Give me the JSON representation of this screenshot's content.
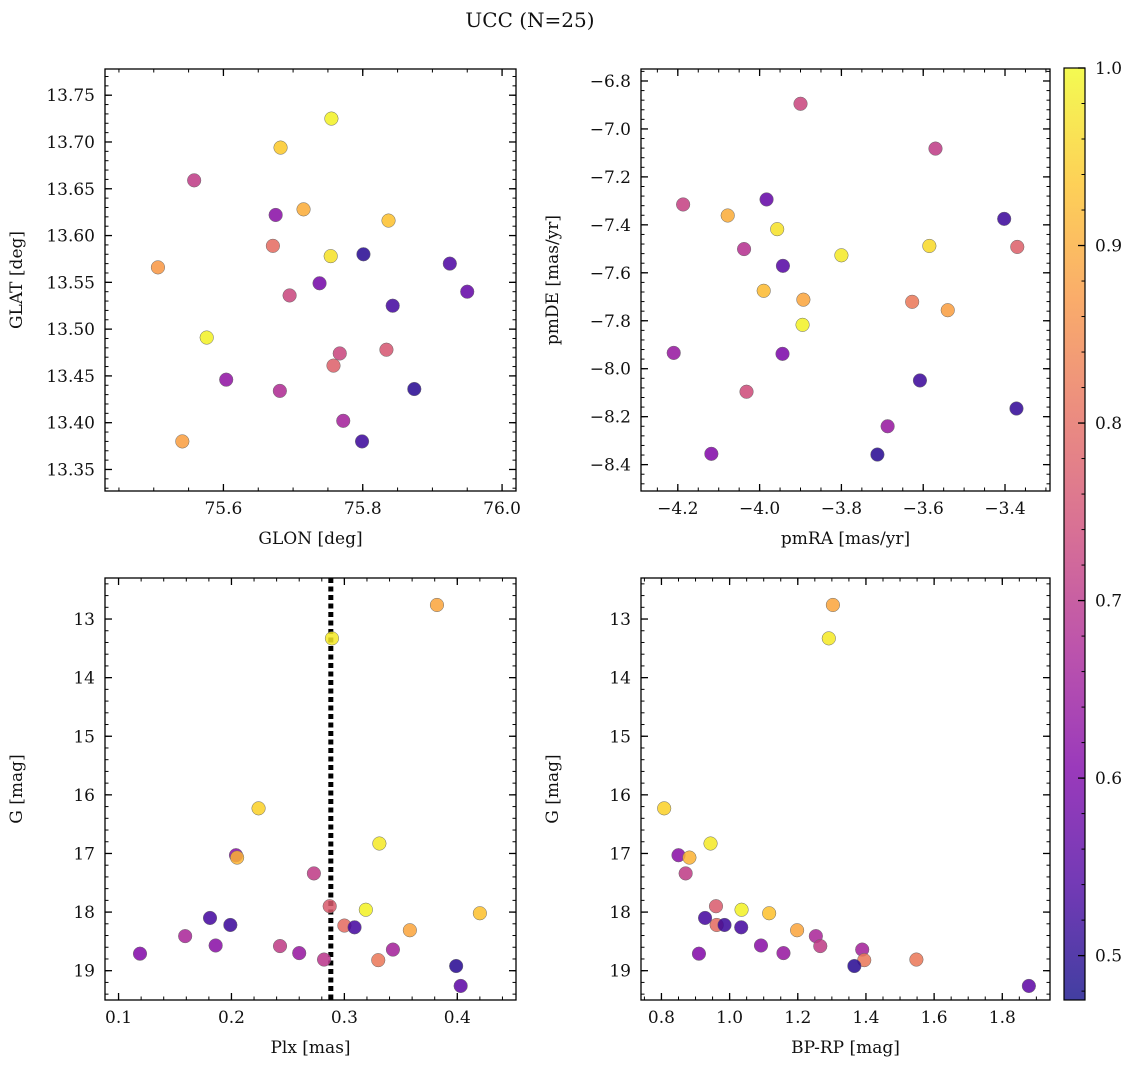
{
  "figure": {
    "title": "UCC (N=25)"
  },
  "colorbar": {
    "vmin": 0.475,
    "vmax": 1.0,
    "ticks": [
      0.5,
      0.6,
      0.7,
      0.8,
      0.9,
      1.0
    ],
    "tick_labels": [
      "0.5",
      "0.6",
      "0.7",
      "0.8",
      "0.9",
      "1.0"
    ],
    "colormap": "plasma"
  },
  "chart_data": [
    {
      "type": "scatter",
      "xlabel": "GLON [deg]",
      "ylabel": "GLAT [deg]",
      "xlim": [
        75.43,
        76.02
      ],
      "ylim": [
        13.327,
        13.778
      ],
      "y_inverted": false,
      "xticks": [
        75.6,
        75.8,
        76.0
      ],
      "xtick_labels": [
        "75.6",
        "75.8",
        "76.0"
      ],
      "yticks": [
        13.35,
        13.4,
        13.45,
        13.5,
        13.55,
        13.6,
        13.65,
        13.7,
        13.75
      ],
      "ytick_labels": [
        "13.35",
        "13.40",
        "13.45",
        "13.50",
        "13.55",
        "13.60",
        "13.65",
        "13.70",
        "13.75"
      ],
      "points": [
        {
          "x": 75.755,
          "y": 13.725,
          "c": 0.99
        },
        {
          "x": 75.682,
          "y": 13.694,
          "c": 0.94
        },
        {
          "x": 75.558,
          "y": 13.659,
          "c": 0.71
        },
        {
          "x": 75.715,
          "y": 13.628,
          "c": 0.9
        },
        {
          "x": 75.837,
          "y": 13.616,
          "c": 0.93
        },
        {
          "x": 75.675,
          "y": 13.622,
          "c": 0.62
        },
        {
          "x": 75.671,
          "y": 13.589,
          "c": 0.8
        },
        {
          "x": 75.754,
          "y": 13.578,
          "c": 0.97
        },
        {
          "x": 75.801,
          "y": 13.58,
          "c": 0.5
        },
        {
          "x": 75.925,
          "y": 13.57,
          "c": 0.54
        },
        {
          "x": 75.506,
          "y": 13.566,
          "c": 0.87
        },
        {
          "x": 75.738,
          "y": 13.549,
          "c": 0.59
        },
        {
          "x": 75.95,
          "y": 13.54,
          "c": 0.57
        },
        {
          "x": 75.695,
          "y": 13.536,
          "c": 0.73
        },
        {
          "x": 75.843,
          "y": 13.525,
          "c": 0.53
        },
        {
          "x": 75.576,
          "y": 13.491,
          "c": 0.99
        },
        {
          "x": 75.834,
          "y": 13.478,
          "c": 0.76
        },
        {
          "x": 75.767,
          "y": 13.474,
          "c": 0.73
        },
        {
          "x": 75.758,
          "y": 13.461,
          "c": 0.78
        },
        {
          "x": 75.604,
          "y": 13.446,
          "c": 0.63
        },
        {
          "x": 75.681,
          "y": 13.434,
          "c": 0.68
        },
        {
          "x": 75.874,
          "y": 13.436,
          "c": 0.5
        },
        {
          "x": 75.772,
          "y": 13.402,
          "c": 0.66
        },
        {
          "x": 75.541,
          "y": 13.38,
          "c": 0.88
        },
        {
          "x": 75.799,
          "y": 13.38,
          "c": 0.52
        }
      ]
    },
    {
      "type": "scatter",
      "xlabel": "pmRA [mas/yr]",
      "ylabel": "pmDE [mas/yr]",
      "xlim": [
        -4.29,
        -3.29
      ],
      "ylim": [
        -8.51,
        -6.75
      ],
      "y_inverted": false,
      "xticks": [
        -4.2,
        -4.0,
        -3.8,
        -3.6,
        -3.4
      ],
      "xtick_labels": [
        "−4.2",
        "−4.0",
        "−3.8",
        "−3.6",
        "−3.4"
      ],
      "yticks": [
        -8.4,
        -8.2,
        -8.0,
        -7.8,
        -7.6,
        -7.4,
        -7.2,
        -7.0,
        -6.8
      ],
      "ytick_labels": [
        "−8.4",
        "−8.2",
        "−8.0",
        "−7.8",
        "−7.6",
        "−7.4",
        "−7.2",
        "−7.0",
        "−6.8"
      ],
      "points": [
        {
          "x": -3.9,
          "y": -6.895,
          "c": 0.73
        },
        {
          "x": -3.57,
          "y": -7.082,
          "c": 0.71
        },
        {
          "x": -4.187,
          "y": -7.315,
          "c": 0.72
        },
        {
          "x": -4.078,
          "y": -7.361,
          "c": 0.9
        },
        {
          "x": -3.983,
          "y": -7.294,
          "c": 0.57
        },
        {
          "x": -3.402,
          "y": -7.375,
          "c": 0.52
        },
        {
          "x": -3.957,
          "y": -7.418,
          "c": 0.97
        },
        {
          "x": -4.038,
          "y": -7.501,
          "c": 0.69
        },
        {
          "x": -3.585,
          "y": -7.488,
          "c": 0.96
        },
        {
          "x": -3.37,
          "y": -7.492,
          "c": 0.78
        },
        {
          "x": -3.8,
          "y": -7.527,
          "c": 0.98
        },
        {
          "x": -3.943,
          "y": -7.571,
          "c": 0.55
        },
        {
          "x": -3.99,
          "y": -7.675,
          "c": 0.92
        },
        {
          "x": -3.893,
          "y": -7.712,
          "c": 0.89
        },
        {
          "x": -3.627,
          "y": -7.721,
          "c": 0.82
        },
        {
          "x": -3.54,
          "y": -7.756,
          "c": 0.88
        },
        {
          "x": -3.895,
          "y": -7.817,
          "c": 0.99
        },
        {
          "x": -4.21,
          "y": -7.934,
          "c": 0.64
        },
        {
          "x": -3.944,
          "y": -7.938,
          "c": 0.6
        },
        {
          "x": -3.608,
          "y": -8.049,
          "c": 0.52
        },
        {
          "x": -4.032,
          "y": -8.096,
          "c": 0.74
        },
        {
          "x": -3.372,
          "y": -8.166,
          "c": 0.51
        },
        {
          "x": -3.687,
          "y": -8.24,
          "c": 0.64
        },
        {
          "x": -4.118,
          "y": -8.355,
          "c": 0.61
        },
        {
          "x": -3.712,
          "y": -8.358,
          "c": 0.5
        }
      ]
    },
    {
      "type": "scatter",
      "xlabel": "Plx [mas]",
      "ylabel": "G [mag]",
      "xlim": [
        0.088,
        0.452
      ],
      "ylim": [
        12.3,
        19.5
      ],
      "y_inverted": true,
      "xticks": [
        0.1,
        0.2,
        0.3,
        0.4
      ],
      "xtick_labels": [
        "0.1",
        "0.2",
        "0.3",
        "0.4"
      ],
      "yticks": [
        13,
        14,
        15,
        16,
        17,
        18,
        19
      ],
      "ytick_labels": [
        "13",
        "14",
        "15",
        "16",
        "17",
        "18",
        "19"
      ],
      "vline": 0.288,
      "points": [
        {
          "x": 0.382,
          "y": 12.76,
          "c": 0.89
        },
        {
          "x": 0.289,
          "y": 13.33,
          "c": 0.98
        },
        {
          "x": 0.224,
          "y": 16.23,
          "c": 0.95
        },
        {
          "x": 0.204,
          "y": 17.03,
          "c": 0.62
        },
        {
          "x": 0.205,
          "y": 17.07,
          "c": 0.91
        },
        {
          "x": 0.331,
          "y": 16.83,
          "c": 0.98
        },
        {
          "x": 0.273,
          "y": 17.34,
          "c": 0.71
        },
        {
          "x": 0.287,
          "y": 17.9,
          "c": 0.77
        },
        {
          "x": 0.319,
          "y": 17.96,
          "c": 0.99
        },
        {
          "x": 0.42,
          "y": 18.02,
          "c": 0.93
        },
        {
          "x": 0.181,
          "y": 18.1,
          "c": 0.53
        },
        {
          "x": 0.199,
          "y": 18.22,
          "c": 0.52
        },
        {
          "x": 0.3,
          "y": 18.23,
          "c": 0.8
        },
        {
          "x": 0.309,
          "y": 18.26,
          "c": 0.53
        },
        {
          "x": 0.358,
          "y": 18.31,
          "c": 0.89
        },
        {
          "x": 0.159,
          "y": 18.41,
          "c": 0.67
        },
        {
          "x": 0.186,
          "y": 18.57,
          "c": 0.62
        },
        {
          "x": 0.243,
          "y": 18.58,
          "c": 0.71
        },
        {
          "x": 0.343,
          "y": 18.64,
          "c": 0.66
        },
        {
          "x": 0.119,
          "y": 18.71,
          "c": 0.61
        },
        {
          "x": 0.26,
          "y": 18.7,
          "c": 0.64
        },
        {
          "x": 0.282,
          "y": 18.81,
          "c": 0.7
        },
        {
          "x": 0.33,
          "y": 18.82,
          "c": 0.82
        },
        {
          "x": 0.399,
          "y": 18.92,
          "c": 0.5
        },
        {
          "x": 0.403,
          "y": 19.26,
          "c": 0.56
        }
      ]
    },
    {
      "type": "scatter",
      "xlabel": "BP-RP [mag]",
      "ylabel": "G [mag]",
      "xlim": [
        0.74,
        1.94
      ],
      "ylim": [
        12.3,
        19.5
      ],
      "y_inverted": true,
      "xticks": [
        0.8,
        1.0,
        1.2,
        1.4,
        1.6,
        1.8
      ],
      "xtick_labels": [
        "0.8",
        "1.0",
        "1.2",
        "1.4",
        "1.6",
        "1.8"
      ],
      "yticks": [
        13,
        14,
        15,
        16,
        17,
        18,
        19
      ],
      "ytick_labels": [
        "13",
        "14",
        "15",
        "16",
        "17",
        "18",
        "19"
      ],
      "points": [
        {
          "x": 1.303,
          "y": 12.76,
          "c": 0.89
        },
        {
          "x": 1.291,
          "y": 13.33,
          "c": 0.98
        },
        {
          "x": 0.808,
          "y": 16.23,
          "c": 0.95
        },
        {
          "x": 0.944,
          "y": 16.83,
          "c": 0.98
        },
        {
          "x": 0.85,
          "y": 17.03,
          "c": 0.62
        },
        {
          "x": 0.882,
          "y": 17.07,
          "c": 0.91
        },
        {
          "x": 0.871,
          "y": 17.34,
          "c": 0.71
        },
        {
          "x": 0.96,
          "y": 17.9,
          "c": 0.77
        },
        {
          "x": 1.035,
          "y": 17.96,
          "c": 0.99
        },
        {
          "x": 1.116,
          "y": 18.02,
          "c": 0.93
        },
        {
          "x": 0.928,
          "y": 18.1,
          "c": 0.53
        },
        {
          "x": 0.962,
          "y": 18.22,
          "c": 0.8
        },
        {
          "x": 0.985,
          "y": 18.22,
          "c": 0.52
        },
        {
          "x": 1.034,
          "y": 18.26,
          "c": 0.53
        },
        {
          "x": 1.198,
          "y": 18.31,
          "c": 0.89
        },
        {
          "x": 1.253,
          "y": 18.41,
          "c": 0.67
        },
        {
          "x": 1.092,
          "y": 18.57,
          "c": 0.62
        },
        {
          "x": 1.266,
          "y": 18.58,
          "c": 0.71
        },
        {
          "x": 1.389,
          "y": 18.64,
          "c": 0.66
        },
        {
          "x": 0.91,
          "y": 18.71,
          "c": 0.61
        },
        {
          "x": 1.158,
          "y": 18.7,
          "c": 0.64
        },
        {
          "x": 1.395,
          "y": 18.82,
          "c": 0.82
        },
        {
          "x": 1.548,
          "y": 18.81,
          "c": 0.82
        },
        {
          "x": 1.366,
          "y": 18.92,
          "c": 0.5
        },
        {
          "x": 1.878,
          "y": 19.26,
          "c": 0.56
        }
      ]
    }
  ]
}
